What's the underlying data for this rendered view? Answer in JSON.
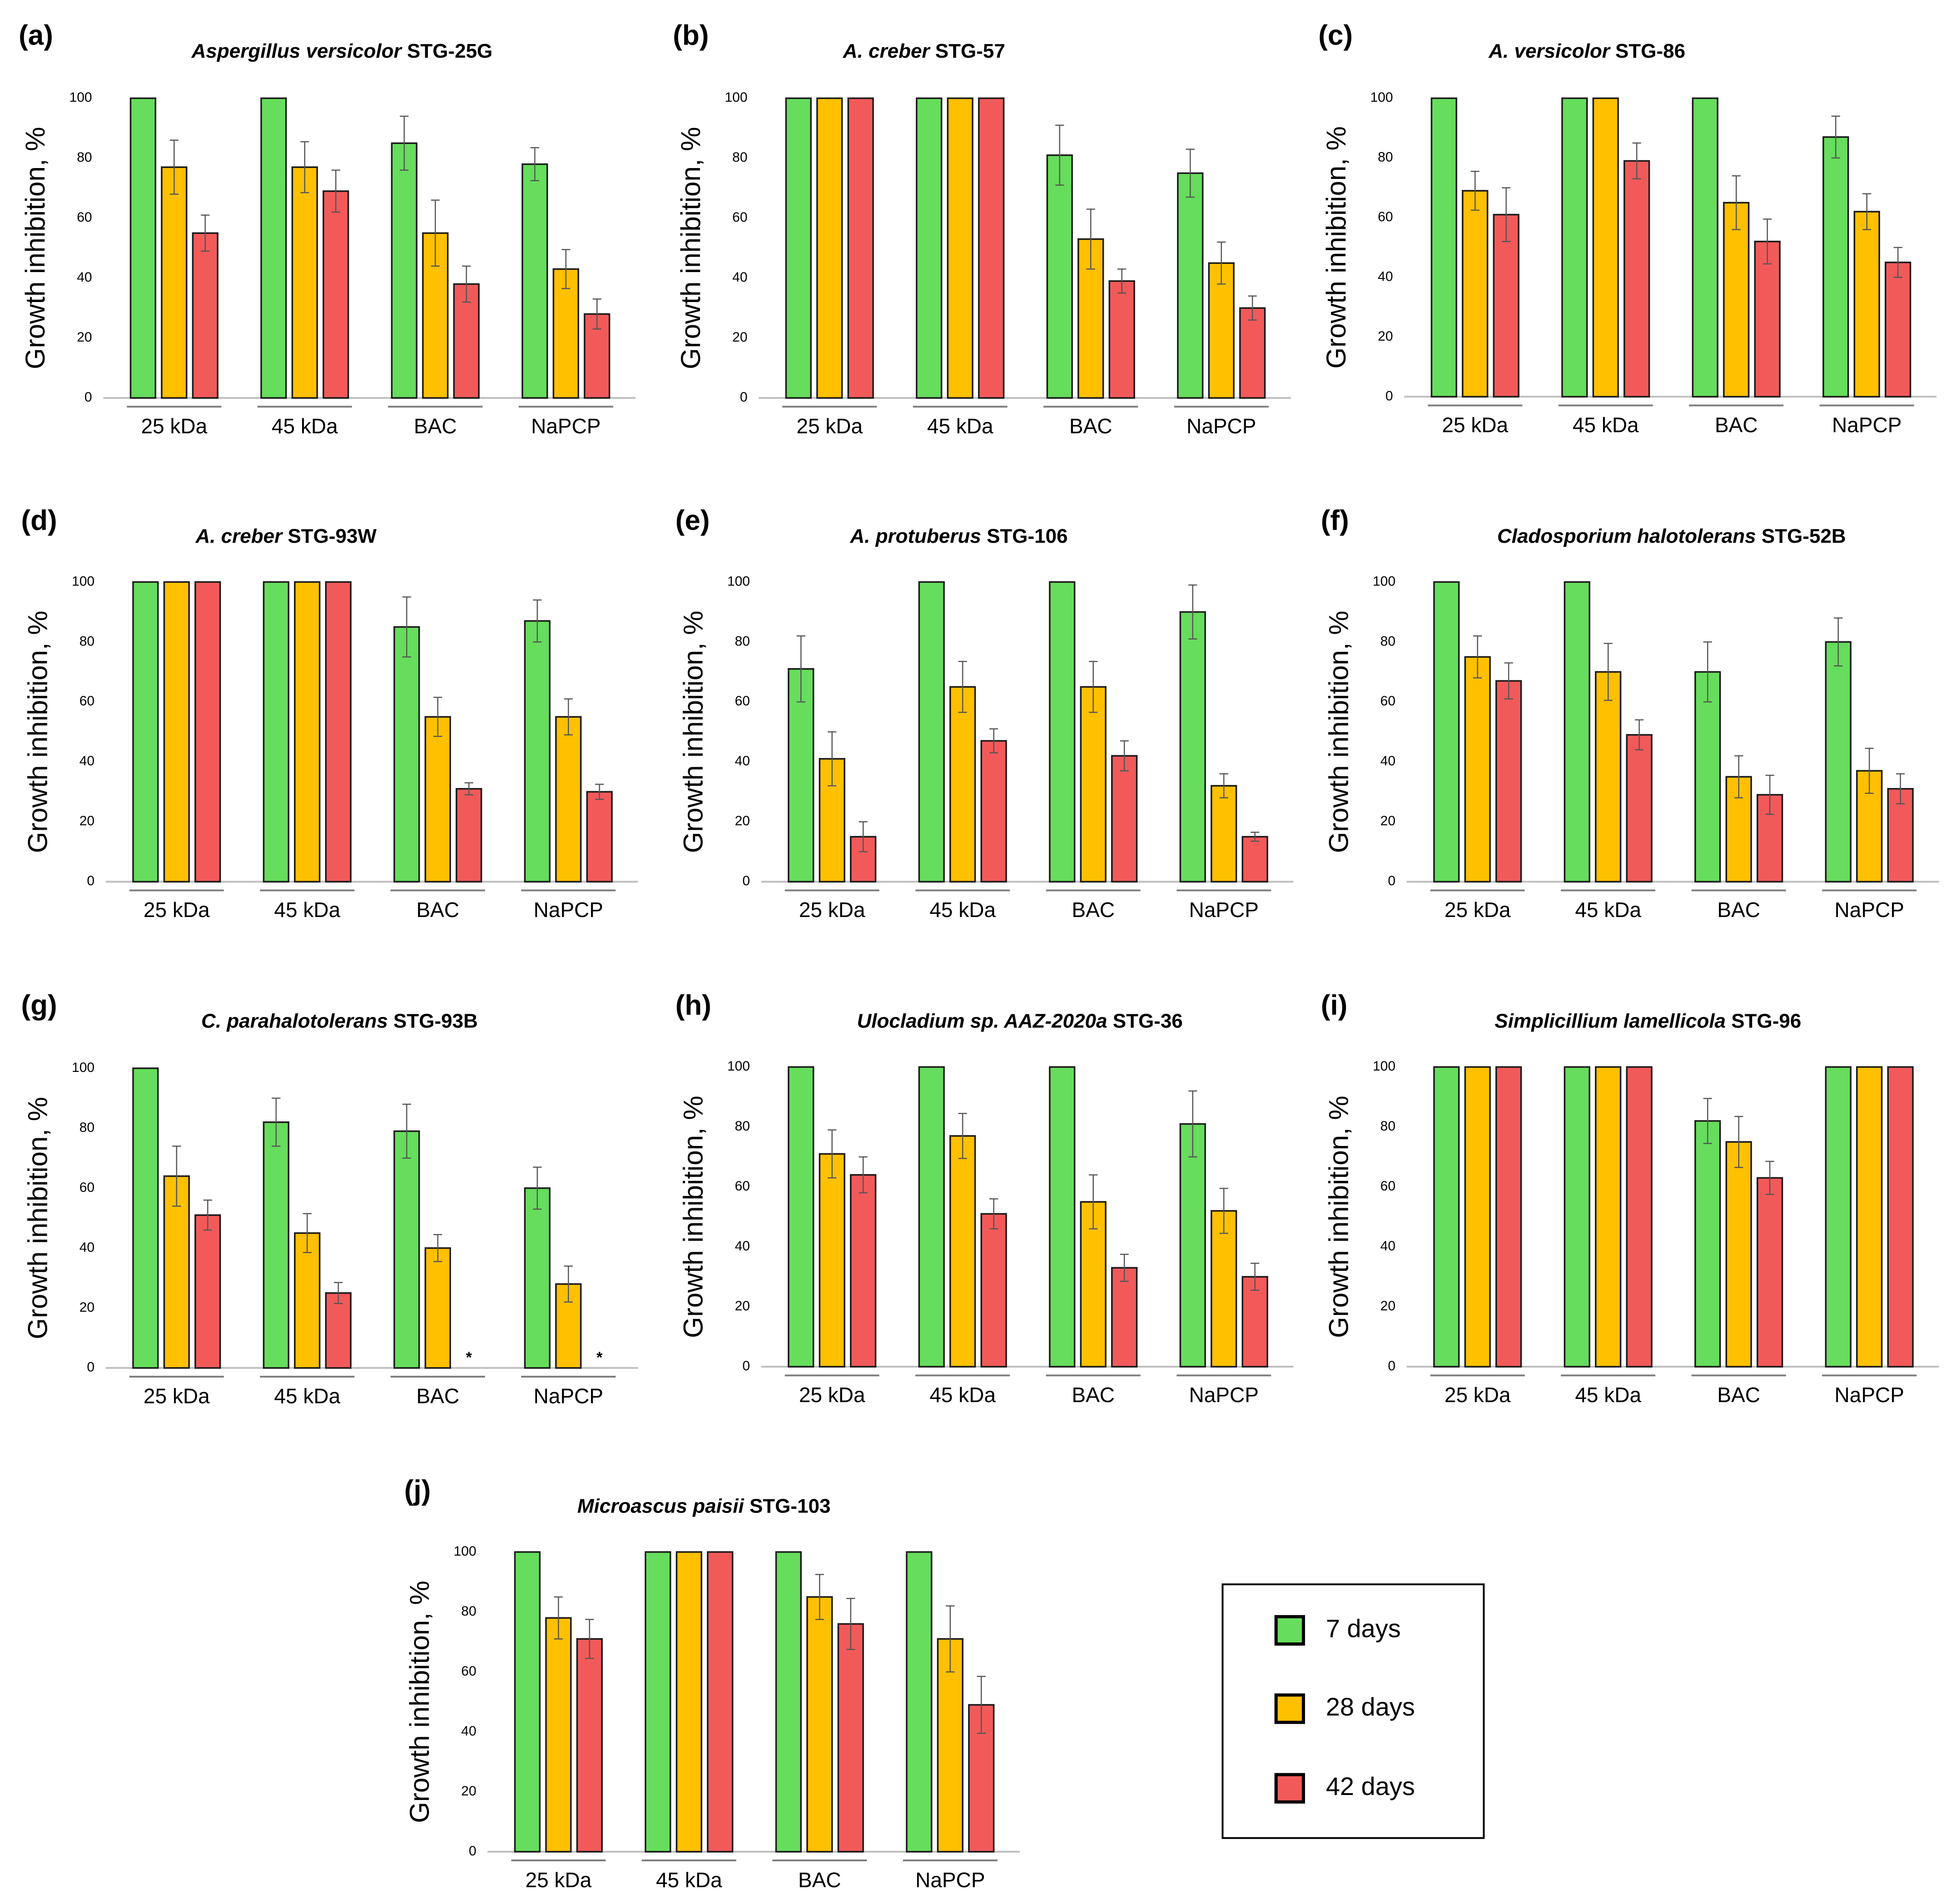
{
  "figure": {
    "colors": {
      "7 days": "#66dd5c",
      "28 days": "#ffc000",
      "42 days": "#f25a5a"
    },
    "legend": [
      {
        "label": "7 days",
        "color": "#66dd5c"
      },
      {
        "label": "28 days",
        "color": "#ffc000"
      },
      {
        "label": "42 days",
        "color": "#f25a5a"
      }
    ]
  },
  "chart_data": [
    {
      "letter": "(a)",
      "title_italic": "Aspergillus versicolor",
      "title_plain": " STG-25G",
      "type": "bar",
      "ylabel": "Growth inhibition, %",
      "ylim": [
        0,
        100
      ],
      "yticks": [
        0,
        20,
        40,
        60,
        80,
        100
      ],
      "categories": [
        "25 kDa",
        "45 kDa",
        "BAC",
        "NaPCP"
      ],
      "series": [
        {
          "name": "7 days",
          "values": [
            100,
            100,
            85,
            78
          ],
          "errors": [
            0,
            0,
            9,
            5.5
          ]
        },
        {
          "name": "28 days",
          "values": [
            77,
            77,
            55,
            43
          ],
          "errors": [
            9,
            8.5,
            11,
            6.5
          ]
        },
        {
          "name": "42 days",
          "values": [
            55,
            69,
            38,
            28
          ],
          "errors": [
            6,
            7,
            6,
            5
          ]
        }
      ],
      "notes": []
    },
    {
      "letter": "(b)",
      "title_italic": "A. creber",
      "title_plain": " STG-57",
      "type": "bar",
      "ylabel": "Growth inhibition, %",
      "ylim": [
        0,
        100
      ],
      "yticks": [
        0,
        20,
        40,
        60,
        80,
        100
      ],
      "categories": [
        "25 kDa",
        "45 kDa",
        "BAC",
        "NaPCP"
      ],
      "series": [
        {
          "name": "7 days",
          "values": [
            100,
            100,
            81,
            75
          ],
          "errors": [
            0,
            0,
            10,
            8
          ]
        },
        {
          "name": "28 days",
          "values": [
            100,
            100,
            53,
            45
          ],
          "errors": [
            0,
            0,
            10,
            7
          ]
        },
        {
          "name": "42 days",
          "values": [
            100,
            100,
            39,
            30
          ],
          "errors": [
            0,
            0,
            4,
            4
          ]
        }
      ],
      "notes": []
    },
    {
      "letter": "(c)",
      "title_italic": "A. versicolor",
      "title_plain": " STG-86",
      "type": "bar",
      "ylabel": "Growth inhibition, %",
      "ylim": [
        0,
        100
      ],
      "yticks": [
        0,
        20,
        40,
        60,
        80,
        100
      ],
      "categories": [
        "25 kDa",
        "45 kDa",
        "BAC",
        "NaPCP"
      ],
      "series": [
        {
          "name": "7 days",
          "values": [
            100,
            100,
            100,
            87
          ],
          "errors": [
            0,
            0,
            0,
            7
          ]
        },
        {
          "name": "28 days",
          "values": [
            69,
            100,
            65,
            62
          ],
          "errors": [
            6.5,
            0,
            9,
            6
          ]
        },
        {
          "name": "42 days",
          "values": [
            61,
            79,
            52,
            45
          ],
          "errors": [
            9,
            6,
            7.5,
            5
          ]
        }
      ],
      "notes": []
    },
    {
      "letter": "(d)",
      "title_italic": "A. creber",
      "title_plain": " STG-93W",
      "type": "bar",
      "ylabel": "Growth inhibition, %",
      "ylim": [
        0,
        100
      ],
      "yticks": [
        0,
        20,
        40,
        60,
        80,
        100
      ],
      "categories": [
        "25 kDa",
        "45 kDa",
        "BAC",
        "NaPCP"
      ],
      "series": [
        {
          "name": "7 days",
          "values": [
            100,
            100,
            85,
            87
          ],
          "errors": [
            0,
            0,
            10,
            7
          ]
        },
        {
          "name": "28 days",
          "values": [
            100,
            100,
            55,
            55
          ],
          "errors": [
            0,
            0,
            6.5,
            6
          ]
        },
        {
          "name": "42 days",
          "values": [
            100,
            100,
            31,
            30
          ],
          "errors": [
            0,
            0,
            2,
            2.5
          ]
        }
      ],
      "notes": []
    },
    {
      "letter": "(e)",
      "title_italic": "A. protuberus",
      "title_plain": " STG-106",
      "type": "bar",
      "ylabel": "Growth inhibition, %",
      "ylim": [
        0,
        100
      ],
      "yticks": [
        0,
        20,
        40,
        60,
        80,
        100
      ],
      "categories": [
        "25 kDa",
        "45 kDa",
        "BAC",
        "NaPCP"
      ],
      "series": [
        {
          "name": "7 days",
          "values": [
            71,
            100,
            100,
            90
          ],
          "errors": [
            11,
            0,
            0,
            9
          ]
        },
        {
          "name": "28 days",
          "values": [
            41,
            65,
            65,
            32
          ],
          "errors": [
            9,
            8.5,
            8.5,
            4
          ]
        },
        {
          "name": "42 days",
          "values": [
            15,
            47,
            42,
            15
          ],
          "errors": [
            5,
            4,
            5,
            1.5
          ]
        }
      ],
      "notes": []
    },
    {
      "letter": "(f)",
      "title_italic": "Cladosporium halotolerans",
      "title_plain": " STG-52B",
      "type": "bar",
      "ylabel": "Growth inhibition, %",
      "ylim": [
        0,
        100
      ],
      "yticks": [
        0,
        20,
        40,
        60,
        80,
        100
      ],
      "categories": [
        "25 kDa",
        "45 kDa",
        "BAC",
        "NaPCP"
      ],
      "series": [
        {
          "name": "7 days",
          "values": [
            100,
            100,
            70,
            80
          ],
          "errors": [
            0,
            0,
            10,
            8
          ]
        },
        {
          "name": "28 days",
          "values": [
            75,
            70,
            35,
            37
          ],
          "errors": [
            7,
            9.5,
            7,
            7.5
          ]
        },
        {
          "name": "42 days",
          "values": [
            67,
            49,
            29,
            31
          ],
          "errors": [
            6,
            5,
            6.5,
            5
          ]
        }
      ],
      "notes": []
    },
    {
      "letter": "(g)",
      "title_italic": "C.  parahalotolerans",
      "title_plain": " STG-93B",
      "type": "bar",
      "ylabel": "Growth inhibition, %",
      "ylim": [
        0,
        100
      ],
      "yticks": [
        0,
        20,
        40,
        60,
        80,
        100
      ],
      "categories": [
        "25 kDa",
        "45 kDa",
        "BAC",
        "NaPCP"
      ],
      "series": [
        {
          "name": "7 days",
          "values": [
            100,
            82,
            79,
            60
          ],
          "errors": [
            0,
            8,
            9,
            7
          ]
        },
        {
          "name": "28 days",
          "values": [
            64,
            45,
            40,
            28
          ],
          "errors": [
            10,
            6.5,
            4.5,
            6
          ]
        },
        {
          "name": "42 days",
          "values": [
            51,
            25,
            0,
            0
          ],
          "errors": [
            5,
            3.5,
            0,
            0
          ]
        }
      ],
      "notes": [
        {
          "category": 2,
          "series": 2,
          "text": "*"
        },
        {
          "category": 3,
          "series": 2,
          "text": "*"
        }
      ]
    },
    {
      "letter": "(h)",
      "title_italic": "Ulocladium sp. AAZ-2020a",
      "title_plain": " STG-36",
      "type": "bar",
      "ylabel": "Growth inhibition, %",
      "ylim": [
        0,
        100
      ],
      "yticks": [
        0,
        20,
        40,
        60,
        80,
        100
      ],
      "categories": [
        "25 kDa",
        "45 kDa",
        "BAC",
        "NaPCP"
      ],
      "series": [
        {
          "name": "7 days",
          "values": [
            100,
            100,
            100,
            81
          ],
          "errors": [
            0,
            0,
            0,
            11
          ]
        },
        {
          "name": "28 days",
          "values": [
            71,
            77,
            55,
            52
          ],
          "errors": [
            8,
            7.5,
            9,
            7.5
          ]
        },
        {
          "name": "42 days",
          "values": [
            64,
            51,
            33,
            30
          ],
          "errors": [
            6,
            5,
            4.5,
            4.5
          ]
        }
      ],
      "notes": []
    },
    {
      "letter": "(i)",
      "title_italic": "Simplicillium lamellicola",
      "title_plain": " STG-96",
      "type": "bar",
      "ylabel": "Growth inhibition, %",
      "ylim": [
        0,
        100
      ],
      "yticks": [
        0,
        20,
        40,
        60,
        80,
        100
      ],
      "categories": [
        "25 kDa",
        "45 kDa",
        "BAC",
        "NaPCP"
      ],
      "series": [
        {
          "name": "7 days",
          "values": [
            100,
            100,
            82,
            100
          ],
          "errors": [
            0,
            0,
            7.5,
            0
          ]
        },
        {
          "name": "28 days",
          "values": [
            100,
            100,
            75,
            100
          ],
          "errors": [
            0,
            0,
            8.5,
            0
          ]
        },
        {
          "name": "42 days",
          "values": [
            100,
            100,
            63,
            100
          ],
          "errors": [
            0,
            0,
            5.5,
            0
          ]
        }
      ],
      "notes": []
    },
    {
      "letter": "(j)",
      "title_italic": "Microascus paisii",
      "title_plain": " STG-103",
      "type": "bar",
      "ylabel": "Growth inhibition, %",
      "ylim": [
        0,
        100
      ],
      "yticks": [
        0,
        20,
        40,
        60,
        80,
        100
      ],
      "categories": [
        "25 kDa",
        "45 kDa",
        "BAC",
        "NaPCP"
      ],
      "series": [
        {
          "name": "7 days",
          "values": [
            100,
            100,
            100,
            100
          ],
          "errors": [
            0,
            0,
            0,
            0
          ]
        },
        {
          "name": "28 days",
          "values": [
            78,
            100,
            85,
            71
          ],
          "errors": [
            7,
            0,
            7.5,
            11
          ]
        },
        {
          "name": "42 days",
          "values": [
            71,
            100,
            76,
            49
          ],
          "errors": [
            6.5,
            0,
            8.5,
            9.5
          ]
        }
      ],
      "notes": []
    }
  ]
}
